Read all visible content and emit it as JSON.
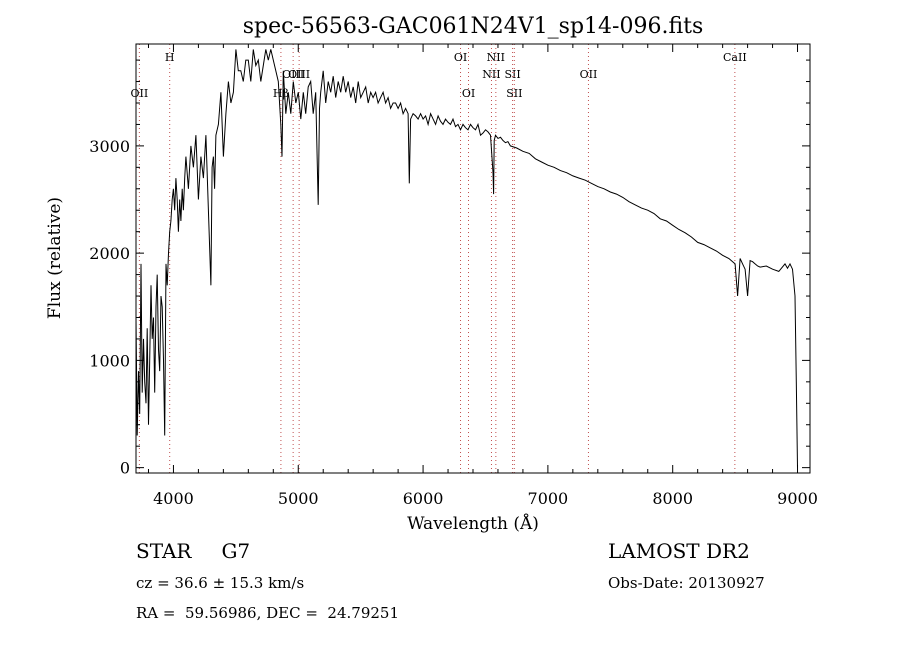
{
  "chart_data": {
    "type": "line",
    "title": "spec-56563-GAC061N24V1_sp14-096.fits",
    "xlabel": "Wavelength (Å)",
    "ylabel": "Flux (relative)",
    "xlim": [
      3700,
      9100
    ],
    "ylim": [
      -50,
      3950
    ],
    "xticks": [
      4000,
      5000,
      6000,
      7000,
      8000,
      9000
    ],
    "yticks": [
      0,
      1000,
      2000,
      3000
    ],
    "line_color": "#000000",
    "marker_color": "#c05050",
    "series": [
      {
        "x": [
          3700,
          3710,
          3720,
          3730,
          3740,
          3750,
          3760,
          3770,
          3780,
          3790,
          3800,
          3810,
          3820,
          3830,
          3840,
          3850,
          3860,
          3870,
          3880,
          3890,
          3900,
          3910,
          3920,
          3930,
          3940,
          3950,
          3960,
          3970,
          3980,
          3990,
          4000,
          4010,
          4020,
          4030,
          4040,
          4050,
          4060,
          4070,
          4080,
          4090,
          4100,
          4120,
          4140,
          4160,
          4180,
          4200,
          4220,
          4240,
          4260,
          4280,
          4300,
          4310,
          4320,
          4330,
          4340,
          4360,
          4380,
          4400,
          4420,
          4440,
          4460,
          4480,
          4500,
          4520,
          4540,
          4560,
          4580,
          4600,
          4620,
          4640,
          4660,
          4680,
          4700,
          4720,
          4740,
          4760,
          4780,
          4800,
          4820,
          4840,
          4860,
          4870,
          4880,
          4900,
          4920,
          4940,
          4960,
          4980,
          5000,
          5020,
          5040,
          5060,
          5080,
          5100,
          5120,
          5140,
          5160,
          5170,
          5180,
          5200,
          5220,
          5240,
          5260,
          5280,
          5300,
          5320,
          5340,
          5360,
          5380,
          5400,
          5420,
          5440,
          5460,
          5480,
          5500,
          5520,
          5540,
          5560,
          5580,
          5600,
          5620,
          5640,
          5660,
          5680,
          5700,
          5720,
          5740,
          5760,
          5780,
          5800,
          5820,
          5840,
          5860,
          5880,
          5890,
          5900,
          5920,
          5940,
          5960,
          5980,
          6000,
          6020,
          6040,
          6060,
          6080,
          6100,
          6120,
          6140,
          6160,
          6180,
          6200,
          6220,
          6240,
          6260,
          6280,
          6300,
          6320,
          6340,
          6360,
          6380,
          6400,
          6420,
          6440,
          6460,
          6480,
          6500,
          6520,
          6540,
          6560,
          6565,
          6570,
          6580,
          6600,
          6620,
          6640,
          6660,
          6680,
          6700,
          6750,
          6800,
          6850,
          6900,
          6950,
          7000,
          7050,
          7100,
          7150,
          7200,
          7250,
          7300,
          7350,
          7400,
          7450,
          7500,
          7550,
          7600,
          7650,
          7700,
          7750,
          7800,
          7850,
          7900,
          7950,
          8000,
          8050,
          8100,
          8150,
          8200,
          8250,
          8300,
          8350,
          8400,
          8450,
          8500,
          8520,
          8540,
          8560,
          8580,
          8600,
          8620,
          8640,
          8660,
          8680,
          8700,
          8750,
          8800,
          8850,
          8900,
          8920,
          8940,
          8960,
          8980,
          8990,
          9000
        ],
        "y": [
          1400,
          300,
          900,
          500,
          1900,
          700,
          1200,
          800,
          600,
          1300,
          400,
          1000,
          1700,
          1200,
          1400,
          700,
          1500,
          1800,
          1100,
          900,
          1600,
          1500,
          1000,
          300,
          1900,
          1700,
          2000,
          2200,
          2300,
          2500,
          2600,
          2400,
          2700,
          2500,
          2200,
          2500,
          2300,
          2600,
          2400,
          2700,
          2900,
          2600,
          3000,
          2800,
          3100,
          2500,
          2900,
          2700,
          3100,
          2400,
          1700,
          2800,
          2900,
          2600,
          3100,
          3200,
          3500,
          2900,
          3300,
          3600,
          3400,
          3500,
          3900,
          3700,
          3700,
          3600,
          3800,
          3800,
          3600,
          3900,
          3750,
          3800,
          3600,
          3750,
          3900,
          3800,
          3900,
          3800,
          3700,
          3600,
          3200,
          2900,
          3700,
          3300,
          3500,
          3300,
          3600,
          3400,
          3500,
          3250,
          3500,
          3300,
          3550,
          3600,
          3300,
          3500,
          2450,
          3350,
          3500,
          3700,
          3400,
          3600,
          3500,
          3650,
          3450,
          3600,
          3500,
          3650,
          3500,
          3600,
          3450,
          3550,
          3400,
          3600,
          3450,
          3500,
          3550,
          3400,
          3500,
          3450,
          3500,
          3400,
          3450,
          3500,
          3400,
          3450,
          3350,
          3400,
          3400,
          3350,
          3400,
          3300,
          3350,
          3300,
          2650,
          3250,
          3300,
          3280,
          3250,
          3300,
          3250,
          3280,
          3200,
          3300,
          3250,
          3200,
          3280,
          3230,
          3200,
          3250,
          3220,
          3200,
          3250,
          3180,
          3200,
          3150,
          3200,
          3170,
          3150,
          3200,
          3170,
          3150,
          3200,
          3100,
          3120,
          3150,
          3130,
          3100,
          2750,
          2550,
          3050,
          3100,
          3070,
          3080,
          3050,
          3030,
          3040,
          3000,
          2980,
          2950,
          2930,
          2880,
          2850,
          2820,
          2800,
          2770,
          2750,
          2720,
          2700,
          2680,
          2650,
          2620,
          2600,
          2570,
          2550,
          2520,
          2480,
          2450,
          2420,
          2400,
          2370,
          2320,
          2300,
          2260,
          2220,
          2190,
          2150,
          2100,
          2080,
          2050,
          2020,
          1980,
          1950,
          1900,
          1600,
          1950,
          1900,
          1850,
          1600,
          1930,
          1920,
          1900,
          1880,
          1870,
          1880,
          1850,
          1830,
          1900,
          1860,
          1900,
          1850,
          1600,
          800,
          0
        ]
      }
    ],
    "line_markers": [
      {
        "label": "OII",
        "x": 3727,
        "row": 1
      },
      {
        "label": "H",
        "x": 3970,
        "row": 0
      },
      {
        "label": "Hβ",
        "x": 4861,
        "row": 1
      },
      {
        "label": "OIII",
        "x": 4959,
        "row": 2
      },
      {
        "label": "OIII",
        "x": 5007,
        "row": 2
      },
      {
        "label": "OI",
        "x": 6300,
        "row": 0
      },
      {
        "label": "OI",
        "x": 6364,
        "row": 1
      },
      {
        "label": "NII",
        "x": 6548,
        "row": 2
      },
      {
        "label": "NII",
        "x": 6583,
        "row": 0
      },
      {
        "label": "SII",
        "x": 6717,
        "row": 2
      },
      {
        "label": "SII",
        "x": 6731,
        "row": 1
      },
      {
        "label": "OII",
        "x": 7325,
        "row": 2
      },
      {
        "label": "CaII",
        "x": 8498,
        "row": 0
      }
    ]
  },
  "info": {
    "object_class": "STAR",
    "subclass": "G7",
    "cz": "cz = 36.6 ± 15.3 km/s",
    "coords": "RA =  59.56986, DEC =  24.79251",
    "survey": "LAMOST DR2",
    "obs_date": "Obs-Date: 20130927"
  }
}
